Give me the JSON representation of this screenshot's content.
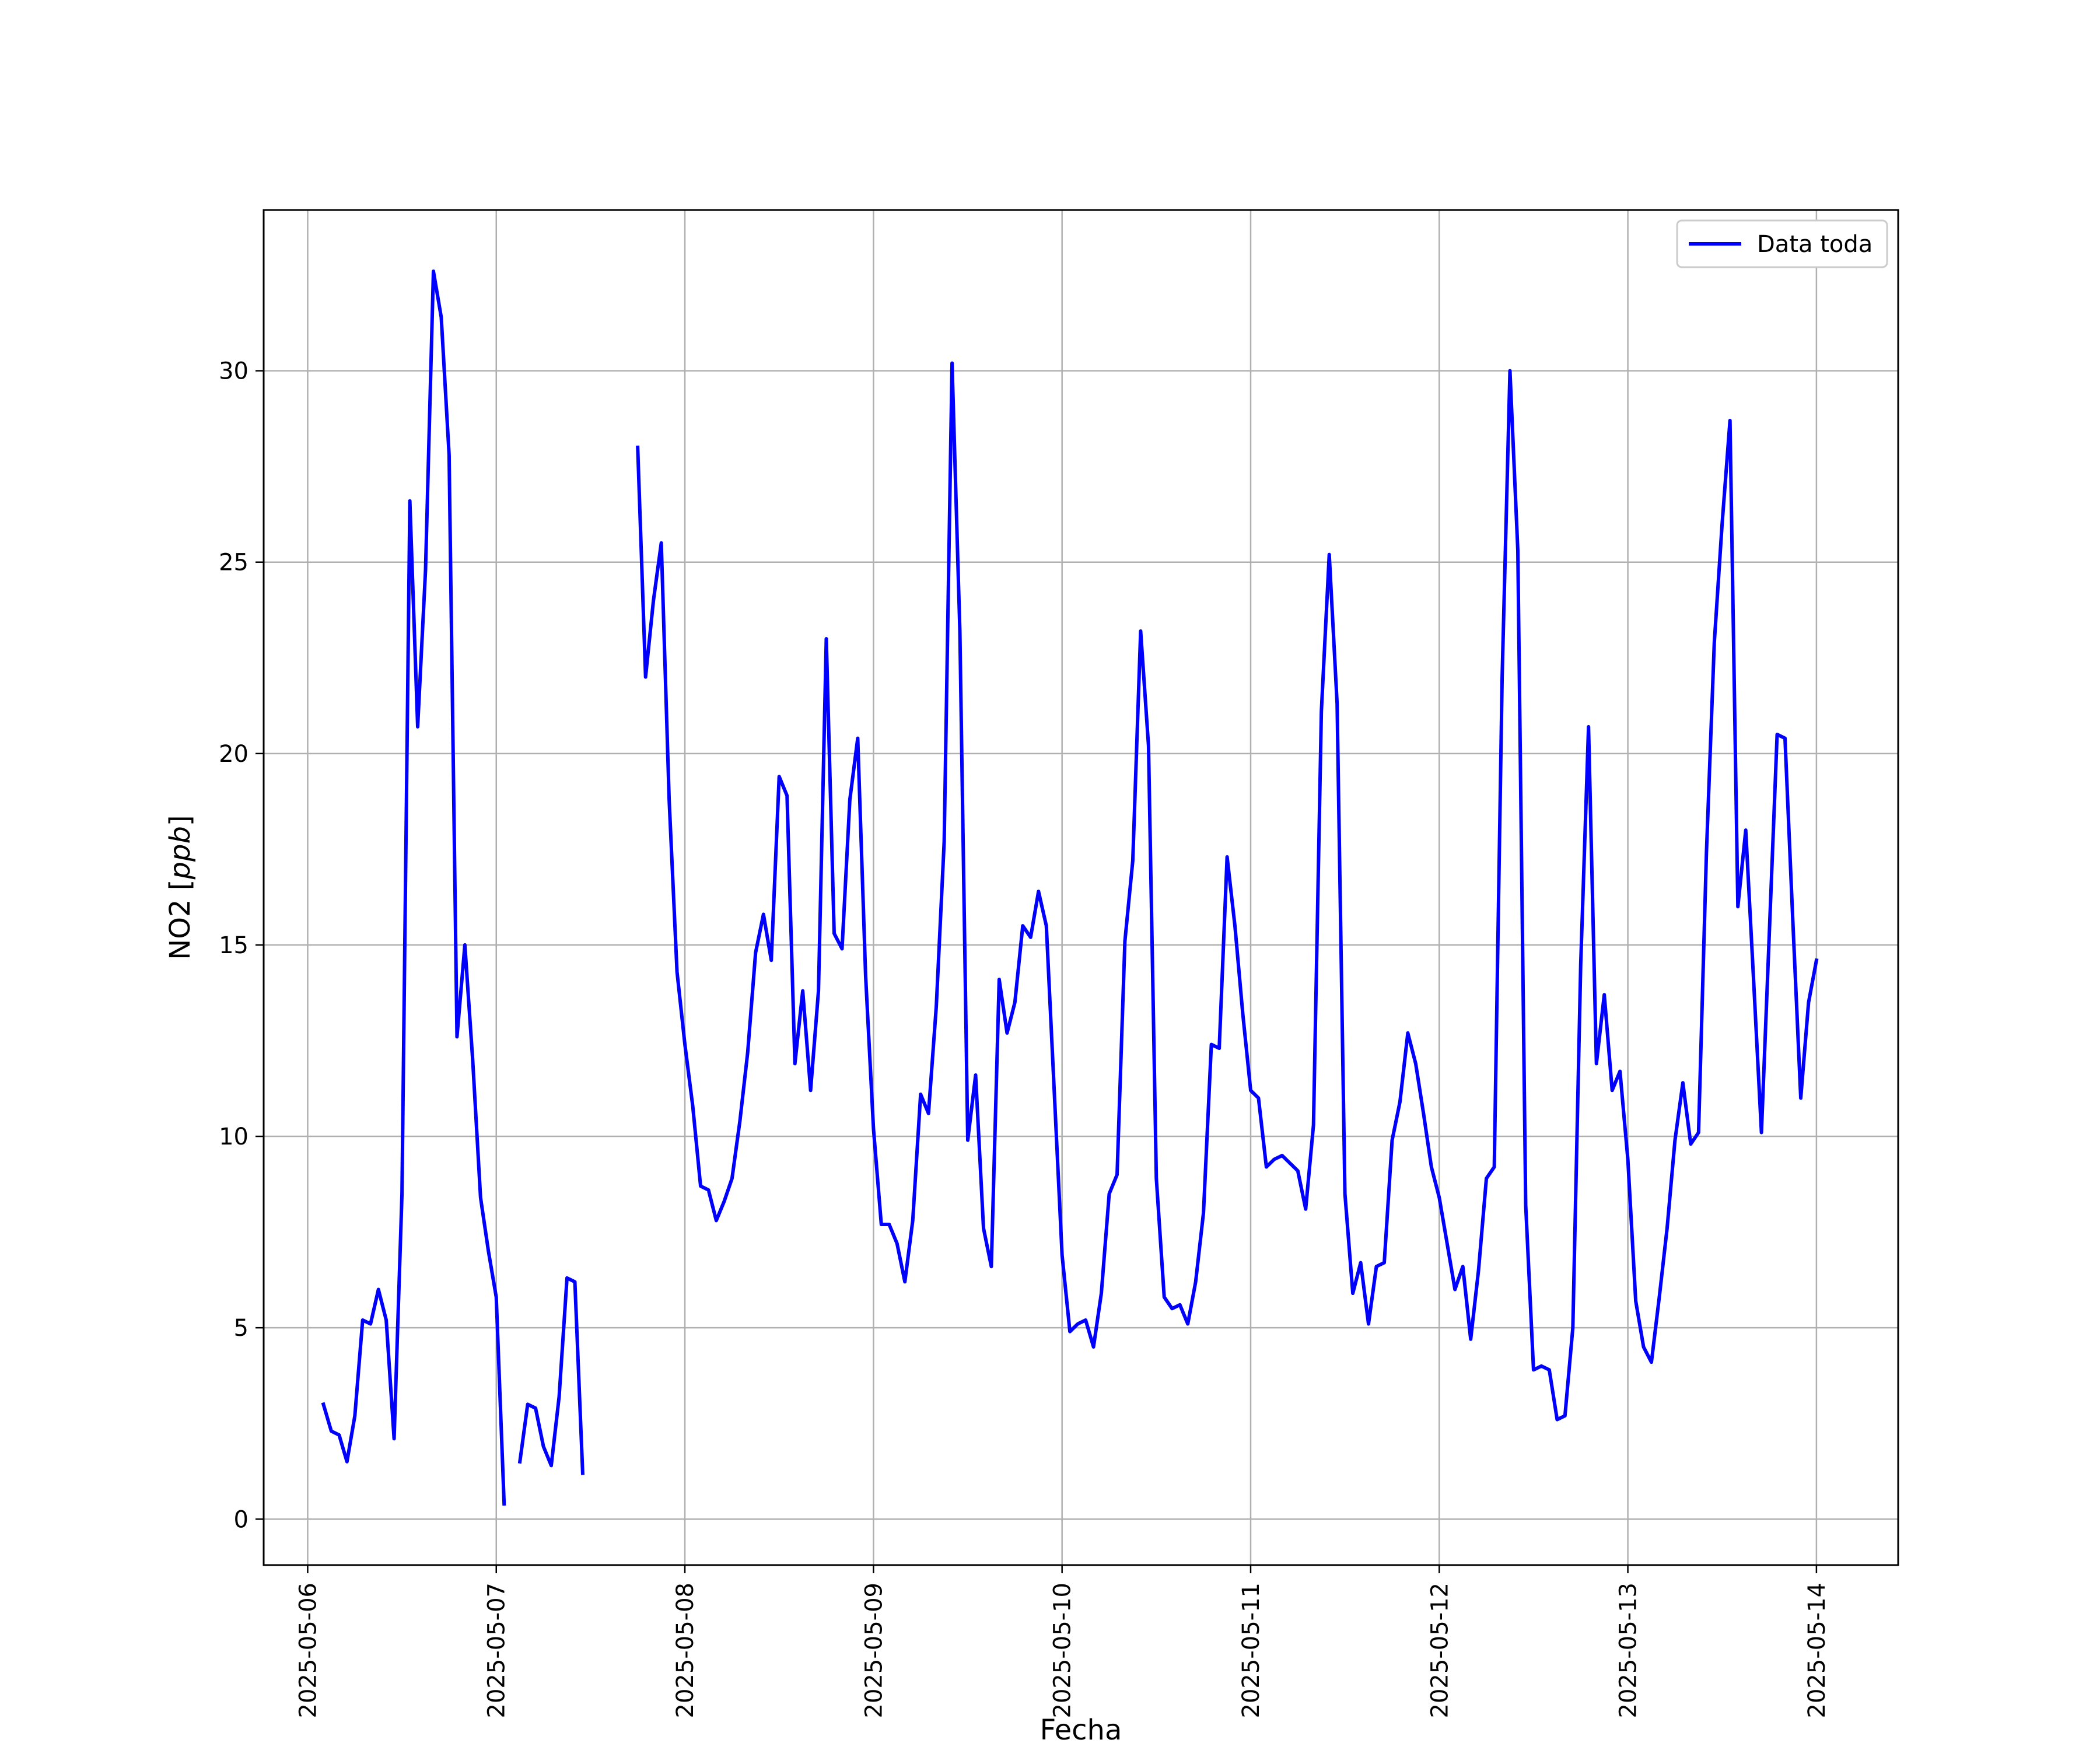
{
  "chart_data": {
    "type": "line",
    "title": "",
    "xlabel": "Fecha",
    "ylabel": "NO2 [ppb]",
    "ylabel_text": "NO2 [",
    "ylabel_math": "ppb",
    "ylabel_close": "]",
    "x_is_date": true,
    "xlim": [
      "2025-05-05 18:24",
      "2025-05-14 10:24"
    ],
    "ylim": [
      -1.2,
      34.2
    ],
    "grid": true,
    "legend_position": "top-right",
    "x_ticks": [
      "2025-05-06",
      "2025-05-07",
      "2025-05-08",
      "2025-05-09",
      "2025-05-10",
      "2025-05-11",
      "2025-05-12",
      "2025-05-13",
      "2025-05-14"
    ],
    "y_ticks": [
      0,
      5,
      10,
      15,
      20,
      25,
      30
    ],
    "y_tick_labels": [
      "0",
      "5",
      "10",
      "15",
      "20",
      "25",
      "30"
    ],
    "series": [
      {
        "name": "Data toda",
        "color": "#0000ff",
        "x": [
          "2025-05-06 02:00",
          "2025-05-06 03:00",
          "2025-05-06 04:00",
          "2025-05-06 05:00",
          "2025-05-06 06:00",
          "2025-05-06 07:00",
          "2025-05-06 08:00",
          "2025-05-06 09:00",
          "2025-05-06 10:00",
          "2025-05-06 11:00",
          "2025-05-06 12:00",
          "2025-05-06 13:00",
          "2025-05-06 14:00",
          "2025-05-06 15:00",
          "2025-05-06 16:00",
          "2025-05-06 17:00",
          "2025-05-06 18:00",
          "2025-05-06 19:00",
          "2025-05-06 20:00",
          "2025-05-06 21:00",
          "2025-05-06 22:00",
          "2025-05-06 23:00",
          "2025-05-07 00:00",
          "2025-05-07 01:00",
          "2025-05-07 03:00",
          "2025-05-07 04:00",
          "2025-05-07 05:00",
          "2025-05-07 06:00",
          "2025-05-07 07:00",
          "2025-05-07 08:00",
          "2025-05-07 09:00",
          "2025-05-07 10:00",
          "2025-05-07 11:00",
          "2025-05-07 18:00",
          "2025-05-07 19:00",
          "2025-05-07 20:00",
          "2025-05-07 21:00",
          "2025-05-07 22:00",
          "2025-05-07 23:00",
          "2025-05-08 00:00",
          "2025-05-08 01:00",
          "2025-05-08 02:00",
          "2025-05-08 03:00",
          "2025-05-08 04:00",
          "2025-05-08 05:00",
          "2025-05-08 06:00",
          "2025-05-08 07:00",
          "2025-05-08 08:00",
          "2025-05-08 09:00",
          "2025-05-08 10:00",
          "2025-05-08 11:00",
          "2025-05-08 12:00",
          "2025-05-08 13:00",
          "2025-05-08 14:00",
          "2025-05-08 15:00",
          "2025-05-08 16:00",
          "2025-05-08 17:00",
          "2025-05-08 18:00",
          "2025-05-08 19:00",
          "2025-05-08 20:00",
          "2025-05-08 21:00",
          "2025-05-08 22:00",
          "2025-05-08 23:00",
          "2025-05-09 00:00",
          "2025-05-09 01:00",
          "2025-05-09 02:00",
          "2025-05-09 03:00",
          "2025-05-09 04:00",
          "2025-05-09 05:00",
          "2025-05-09 06:00",
          "2025-05-09 07:00",
          "2025-05-09 08:00",
          "2025-05-09 09:00",
          "2025-05-09 10:00",
          "2025-05-09 11:00",
          "2025-05-09 12:00",
          "2025-05-09 13:00",
          "2025-05-09 14:00",
          "2025-05-09 15:00",
          "2025-05-09 16:00",
          "2025-05-09 17:00",
          "2025-05-09 18:00",
          "2025-05-09 19:00",
          "2025-05-09 20:00",
          "2025-05-09 21:00",
          "2025-05-09 22:00",
          "2025-05-09 23:00",
          "2025-05-10 00:00",
          "2025-05-10 01:00",
          "2025-05-10 02:00",
          "2025-05-10 03:00",
          "2025-05-10 04:00",
          "2025-05-10 05:00",
          "2025-05-10 06:00",
          "2025-05-10 07:00",
          "2025-05-10 08:00",
          "2025-05-10 09:00",
          "2025-05-10 10:00",
          "2025-05-10 11:00",
          "2025-05-10 12:00",
          "2025-05-10 13:00",
          "2025-05-10 14:00",
          "2025-05-10 15:00",
          "2025-05-10 16:00",
          "2025-05-10 17:00",
          "2025-05-10 18:00",
          "2025-05-10 19:00",
          "2025-05-10 20:00",
          "2025-05-10 21:00",
          "2025-05-10 22:00",
          "2025-05-10 23:00",
          "2025-05-11 00:00",
          "2025-05-11 01:00",
          "2025-05-11 02:00",
          "2025-05-11 03:00",
          "2025-05-11 04:00",
          "2025-05-11 05:00",
          "2025-05-11 06:00",
          "2025-05-11 07:00",
          "2025-05-11 08:00",
          "2025-05-11 09:00",
          "2025-05-11 10:00",
          "2025-05-11 11:00",
          "2025-05-11 12:00",
          "2025-05-11 13:00",
          "2025-05-11 14:00",
          "2025-05-11 15:00",
          "2025-05-11 16:00",
          "2025-05-11 17:00",
          "2025-05-11 18:00",
          "2025-05-11 19:00",
          "2025-05-11 20:00",
          "2025-05-11 21:00",
          "2025-05-11 22:00",
          "2025-05-11 23:00",
          "2025-05-12 00:00",
          "2025-05-12 01:00",
          "2025-05-12 02:00",
          "2025-05-12 03:00",
          "2025-05-12 04:00",
          "2025-05-12 05:00",
          "2025-05-12 06:00",
          "2025-05-12 07:00",
          "2025-05-12 08:00",
          "2025-05-12 09:00",
          "2025-05-12 10:00",
          "2025-05-12 11:00",
          "2025-05-12 12:00",
          "2025-05-12 13:00",
          "2025-05-12 14:00",
          "2025-05-12 15:00",
          "2025-05-12 16:00",
          "2025-05-12 17:00",
          "2025-05-12 18:00",
          "2025-05-12 19:00",
          "2025-05-12 20:00",
          "2025-05-12 21:00",
          "2025-05-12 22:00",
          "2025-05-12 23:00",
          "2025-05-13 00:00",
          "2025-05-13 01:00",
          "2025-05-13 02:00",
          "2025-05-13 03:00",
          "2025-05-13 04:00",
          "2025-05-13 05:00",
          "2025-05-13 06:00",
          "2025-05-13 07:00",
          "2025-05-13 08:00",
          "2025-05-13 09:00",
          "2025-05-13 10:00",
          "2025-05-13 11:00",
          "2025-05-13 12:00",
          "2025-05-13 13:00",
          "2025-05-13 14:00",
          "2025-05-13 15:00",
          "2025-05-13 16:00",
          "2025-05-13 17:00",
          "2025-05-13 18:00",
          "2025-05-13 19:00",
          "2025-05-13 20:00",
          "2025-05-13 21:00",
          "2025-05-13 22:00",
          "2025-05-13 23:00",
          "2025-05-14 00:00"
        ],
        "y": [
          3.0,
          2.3,
          2.2,
          1.5,
          2.7,
          5.2,
          5.1,
          6.0,
          5.2,
          2.1,
          8.5,
          26.6,
          20.7,
          24.8,
          32.6,
          31.4,
          27.8,
          12.6,
          15.0,
          12.0,
          8.4,
          7.0,
          5.8,
          0.4,
          1.5,
          3.0,
          2.9,
          1.9,
          1.4,
          3.2,
          6.3,
          6.2,
          1.2,
          28.0,
          22.0,
          24.0,
          25.5,
          18.8,
          14.3,
          12.4,
          10.8,
          8.7,
          8.6,
          7.8,
          8.3,
          8.9,
          10.4,
          12.2,
          14.8,
          15.8,
          14.6,
          19.4,
          18.9,
          11.9,
          13.8,
          11.2,
          13.8,
          23.0,
          15.3,
          14.9,
          18.8,
          20.4,
          14.2,
          10.2,
          7.7,
          7.7,
          7.2,
          6.2,
          7.8,
          11.1,
          10.6,
          13.4,
          17.7,
          30.2,
          23.2,
          9.9,
          11.6,
          7.6,
          6.6,
          14.1,
          12.7,
          13.5,
          15.5,
          15.2,
          16.4,
          15.5,
          11.2,
          6.9,
          4.9,
          5.1,
          5.2,
          4.5,
          5.9,
          8.5,
          9.0,
          15.1,
          17.2,
          23.2,
          20.2,
          8.9,
          5.8,
          5.5,
          5.6,
          5.1,
          6.2,
          8.0,
          12.4,
          12.3,
          17.3,
          15.5,
          13.2,
          11.2,
          11.0,
          9.2,
          9.4,
          9.5,
          9.3,
          9.1,
          8.1,
          10.3,
          21.1,
          25.2,
          21.3,
          8.5,
          5.9,
          6.7,
          5.1,
          6.6,
          6.7,
          9.9,
          10.9,
          12.7,
          11.9,
          10.6,
          9.2,
          8.4,
          7.2,
          6.0,
          6.6,
          4.7,
          6.5,
          8.9,
          9.2,
          22.0,
          30.0,
          25.3,
          8.2,
          3.9,
          4.0,
          3.9,
          2.6,
          2.7,
          5.0,
          14.5,
          20.7,
          11.9,
          13.7,
          11.2,
          11.7,
          9.4,
          5.7,
          4.5,
          4.1,
          5.8,
          7.6,
          9.9,
          11.4,
          9.8,
          10.1,
          17.4,
          22.9,
          26.0,
          28.7,
          16.0,
          18.0,
          14.1,
          10.1,
          15.3,
          20.5,
          20.4,
          15.6,
          11.0,
          13.5,
          14.6
        ]
      }
    ]
  }
}
